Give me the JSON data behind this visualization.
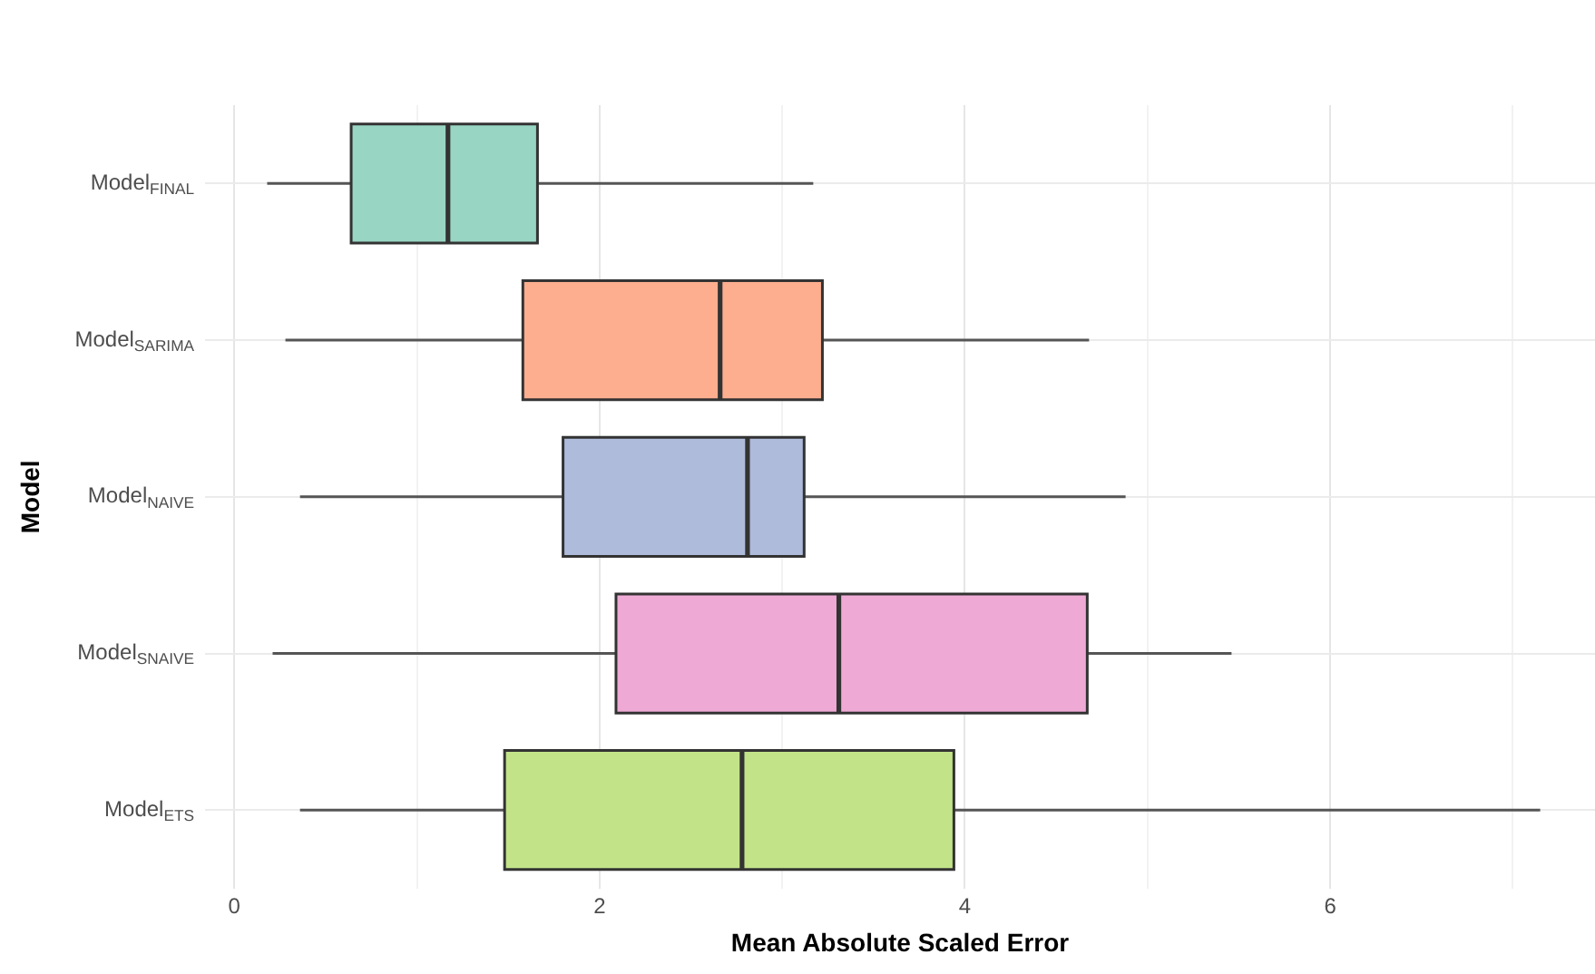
{
  "chart_data": {
    "type": "box",
    "orientation": "horizontal",
    "xlabel": "Mean Absolute Scaled Error",
    "ylabel": "Model",
    "categories": [
      "Model$_{FINAL}$",
      "Model$_{SARIMA}$",
      "Model$_{NAIVE}$",
      "Model$_{SNAIVE}$",
      "Model$_{ETS}$"
    ],
    "colors": [
      "#98d5c2",
      "#fcae8f",
      "#aebbdb",
      "#eeaad4",
      "#c2e388"
    ],
    "boxes": [
      {
        "low": 0.18,
        "q1": 0.64,
        "median": 1.17,
        "q3": 1.66,
        "high": 3.17
      },
      {
        "low": 0.28,
        "q1": 1.58,
        "median": 2.66,
        "q3": 3.22,
        "high": 4.68
      },
      {
        "low": 0.36,
        "q1": 1.8,
        "median": 2.81,
        "q3": 3.12,
        "high": 4.88
      },
      {
        "low": 0.21,
        "q1": 2.09,
        "median": 3.31,
        "q3": 4.67,
        "high": 5.46
      },
      {
        "low": 0.36,
        "q1": 1.48,
        "median": 2.78,
        "q3": 3.94,
        "high": 7.15
      }
    ],
    "xlim": [
      -0.16,
      7.45
    ],
    "xticks": [
      0,
      {
        "value": 1,
        "label": null
      },
      2,
      {
        "value": 3,
        "label": null
      },
      4,
      {
        "value": 5,
        "label": null
      },
      6,
      {
        "value": 7,
        "label": null
      }
    ],
    "grid": true
  }
}
